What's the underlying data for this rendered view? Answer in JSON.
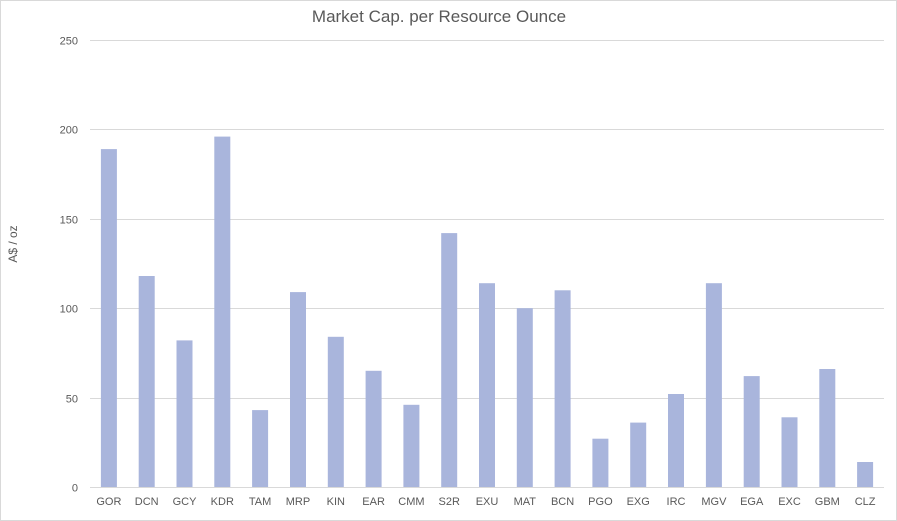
{
  "chart_data": {
    "type": "bar",
    "title": "Market Cap. per Resource Ounce",
    "xlabel": "",
    "ylabel": "A$ / oz",
    "categories": [
      "GOR",
      "DCN",
      "GCY",
      "KDR",
      "TAM",
      "MRP",
      "KIN",
      "EAR",
      "CMM",
      "S2R",
      "EXU",
      "MAT",
      "BCN",
      "PGO",
      "EXG",
      "IRC",
      "MGV",
      "EGA",
      "EXC",
      "GBM",
      "CLZ"
    ],
    "values": [
      189,
      118,
      82,
      196,
      43,
      109,
      84,
      65,
      46,
      142,
      114,
      100,
      110,
      27,
      36,
      52,
      114,
      62,
      39,
      66,
      14
    ],
    "ylim": [
      0,
      250
    ],
    "yticks": [
      0,
      50,
      100,
      150,
      200,
      250
    ],
    "grid": true,
    "legend": "none",
    "colors": {
      "bar": "#a9b5dc",
      "grid": "#d9d9d9",
      "text": "#595959"
    }
  }
}
